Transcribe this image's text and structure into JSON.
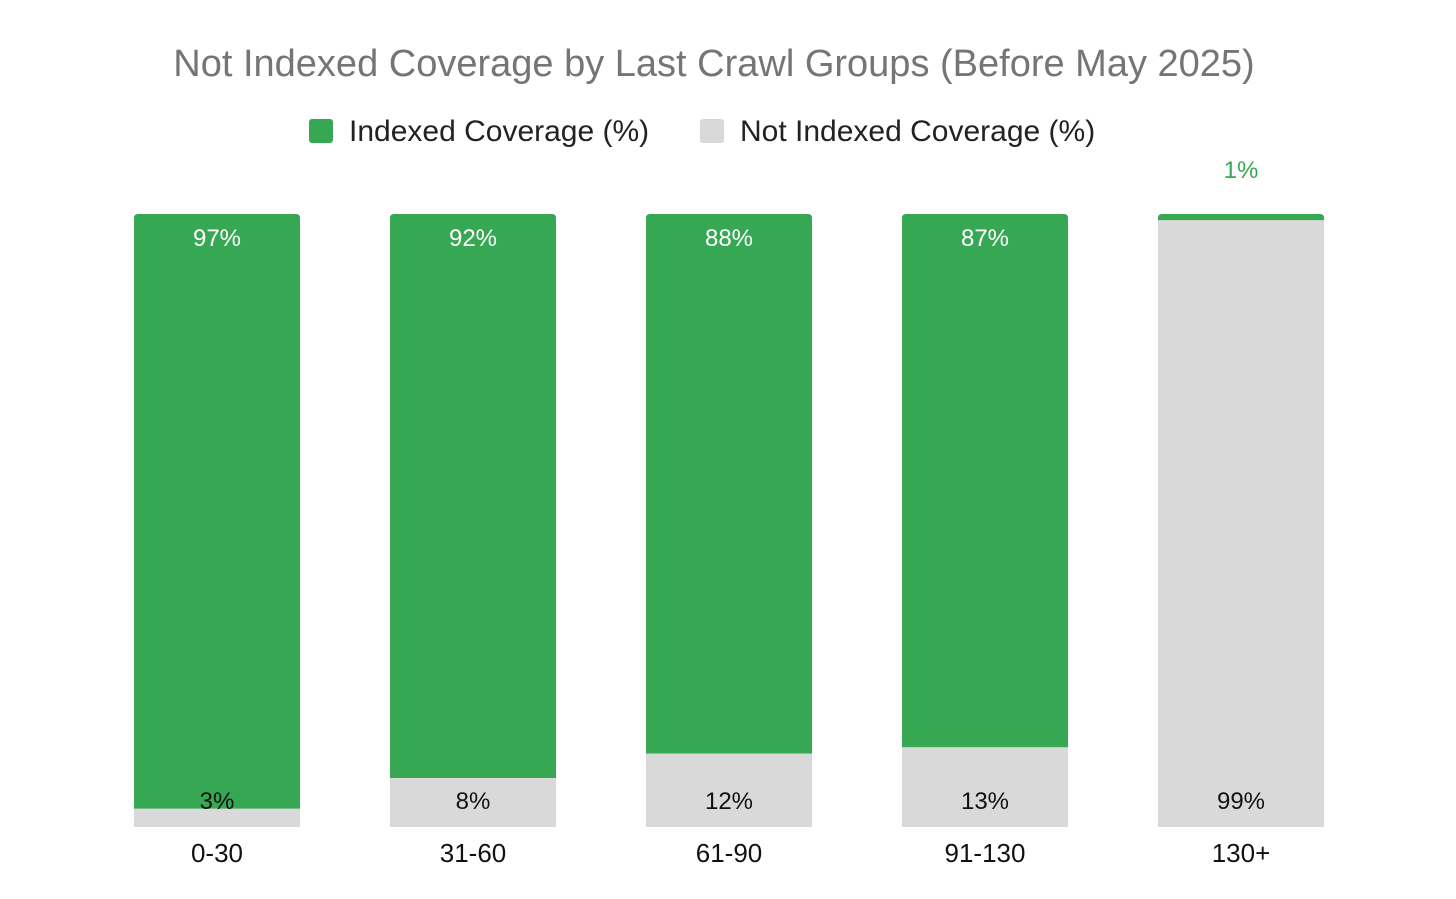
{
  "chart_data": {
    "type": "bar",
    "stacked": true,
    "title": "Not Indexed Coverage by Last Crawl Groups (Before May 2025)",
    "xlabel": "",
    "ylabel": "",
    "ylim": [
      0,
      100
    ],
    "grid": false,
    "legend_position": "top",
    "categories": [
      "0-30",
      "31-60",
      "61-90",
      "91-130",
      "130+"
    ],
    "series": [
      {
        "name": "Indexed Coverage (%)",
        "color": "#36a853",
        "values": [
          97,
          92,
          88,
          87,
          1
        ],
        "labels": [
          "97%",
          "92%",
          "88%",
          "87%",
          "1%"
        ]
      },
      {
        "name": "Not Indexed Coverage (%)",
        "color": "#d9d9d9",
        "values": [
          3,
          8,
          12,
          13,
          99
        ],
        "labels": [
          "3%",
          "8%",
          "12%",
          "13%",
          "99%"
        ]
      }
    ]
  }
}
